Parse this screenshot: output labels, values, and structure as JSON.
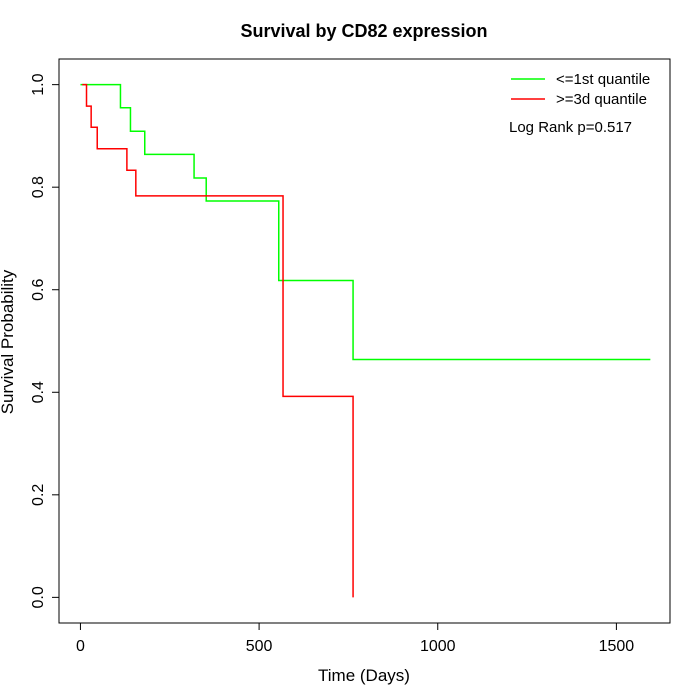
{
  "chart_data": {
    "type": "line",
    "title": "Survival by CD82 expression",
    "xlabel": "Time (Days)",
    "ylabel": "Survival Probability",
    "xlim": [
      -60,
      1650
    ],
    "ylim": [
      -0.05,
      1.05
    ],
    "x_ticks": [
      0,
      500,
      1000,
      1500
    ],
    "y_ticks": [
      0.0,
      0.2,
      0.4,
      0.6,
      0.8,
      1.0
    ],
    "x_tick_labels": [
      "0",
      "500",
      "1000",
      "1500"
    ],
    "y_tick_labels": [
      "0.0",
      "0.2",
      "0.4",
      "0.6",
      "0.8",
      "1.0"
    ],
    "grid": false,
    "legend_position": "top-right",
    "annotation": "Log Rank p=0.517",
    "series": [
      {
        "name": "<=1st quantile",
        "color": "#00ff00",
        "step": true,
        "x": [
          0,
          112,
          140,
          180,
          318,
          352,
          555,
          763,
          1595
        ],
        "y": [
          1.0,
          0.955,
          0.909,
          0.864,
          0.818,
          0.773,
          0.618,
          0.464,
          0.464
        ]
      },
      {
        "name": ">=3d quantile",
        "color": "#ff0000",
        "step": true,
        "x": [
          5,
          17,
          30,
          47,
          130,
          155,
          567,
          763
        ],
        "y": [
          1.0,
          0.958,
          0.917,
          0.875,
          0.833,
          0.783,
          0.392,
          0.0
        ]
      }
    ]
  }
}
